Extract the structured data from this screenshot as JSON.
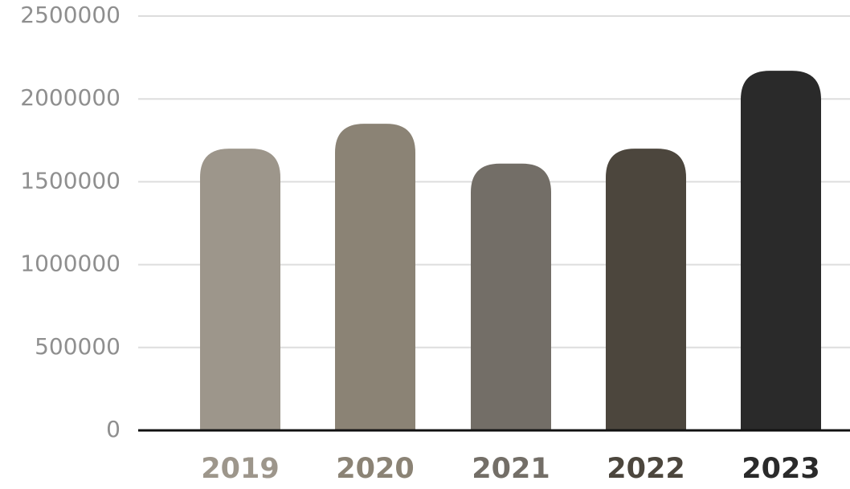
{
  "chart_data": {
    "type": "bar",
    "categories": [
      "2019",
      "2020",
      "2021",
      "2022",
      "2023"
    ],
    "values": [
      1700000,
      1850000,
      1610000,
      1700000,
      2170000
    ],
    "ylim": [
      0,
      2500000
    ],
    "yticks": [
      "0",
      "500000",
      "1000000",
      "1500000",
      "2000000",
      "2500000"
    ],
    "grid": true,
    "legend": "none",
    "bar_colors": [
      "#9d968b",
      "#8b8375",
      "#736e67",
      "#4c463d",
      "#2a2a2a"
    ],
    "xtick_colors": [
      "#9d968b",
      "#8b8375",
      "#736e67",
      "#4c463d",
      "#2a2a2a"
    ],
    "gridline_color": "#dddddd",
    "axis_color": "#111111"
  }
}
